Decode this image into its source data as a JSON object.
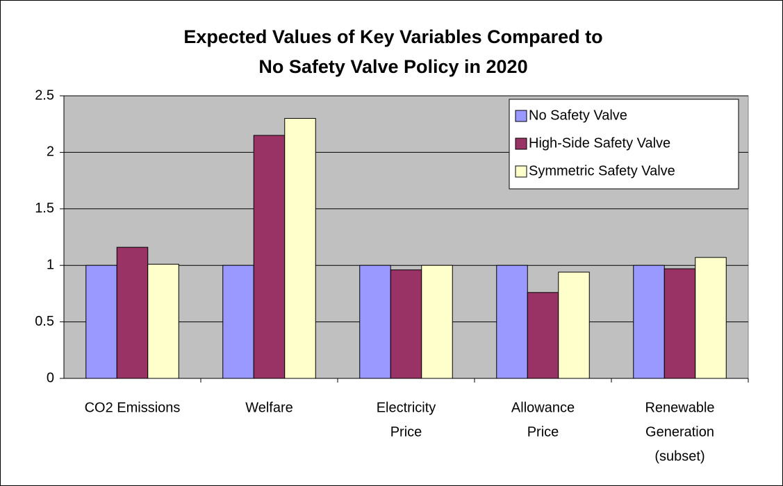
{
  "chart_data": {
    "type": "bar",
    "title": [
      "Expected Values of Key Variables Compared to",
      "No Safety Valve Policy in  2020"
    ],
    "categories": [
      [
        "CO2 Emissions"
      ],
      [
        "Welfare"
      ],
      [
        "Electricity",
        "Price"
      ],
      [
        "Allowance",
        "Price"
      ],
      [
        "Renewable",
        "Generation",
        "(subset)"
      ]
    ],
    "series": [
      {
        "name": "No Safety Valve",
        "color": "#9999ff",
        "values": [
          1,
          1,
          1,
          1,
          1
        ]
      },
      {
        "name": "High-Side Safety Valve",
        "color": "#993366",
        "values": [
          1.16,
          2.15,
          0.96,
          0.76,
          0.97
        ]
      },
      {
        "name": "Symmetric Safety Valve",
        "color": "#ffffcc",
        "values": [
          1.01,
          2.3,
          1.0,
          0.94,
          1.07
        ]
      }
    ],
    "ylim": [
      0,
      2.5
    ],
    "yticks": [
      0,
      0.5,
      1,
      1.5,
      2,
      2.5
    ],
    "grid": true,
    "legend": "top-right"
  }
}
